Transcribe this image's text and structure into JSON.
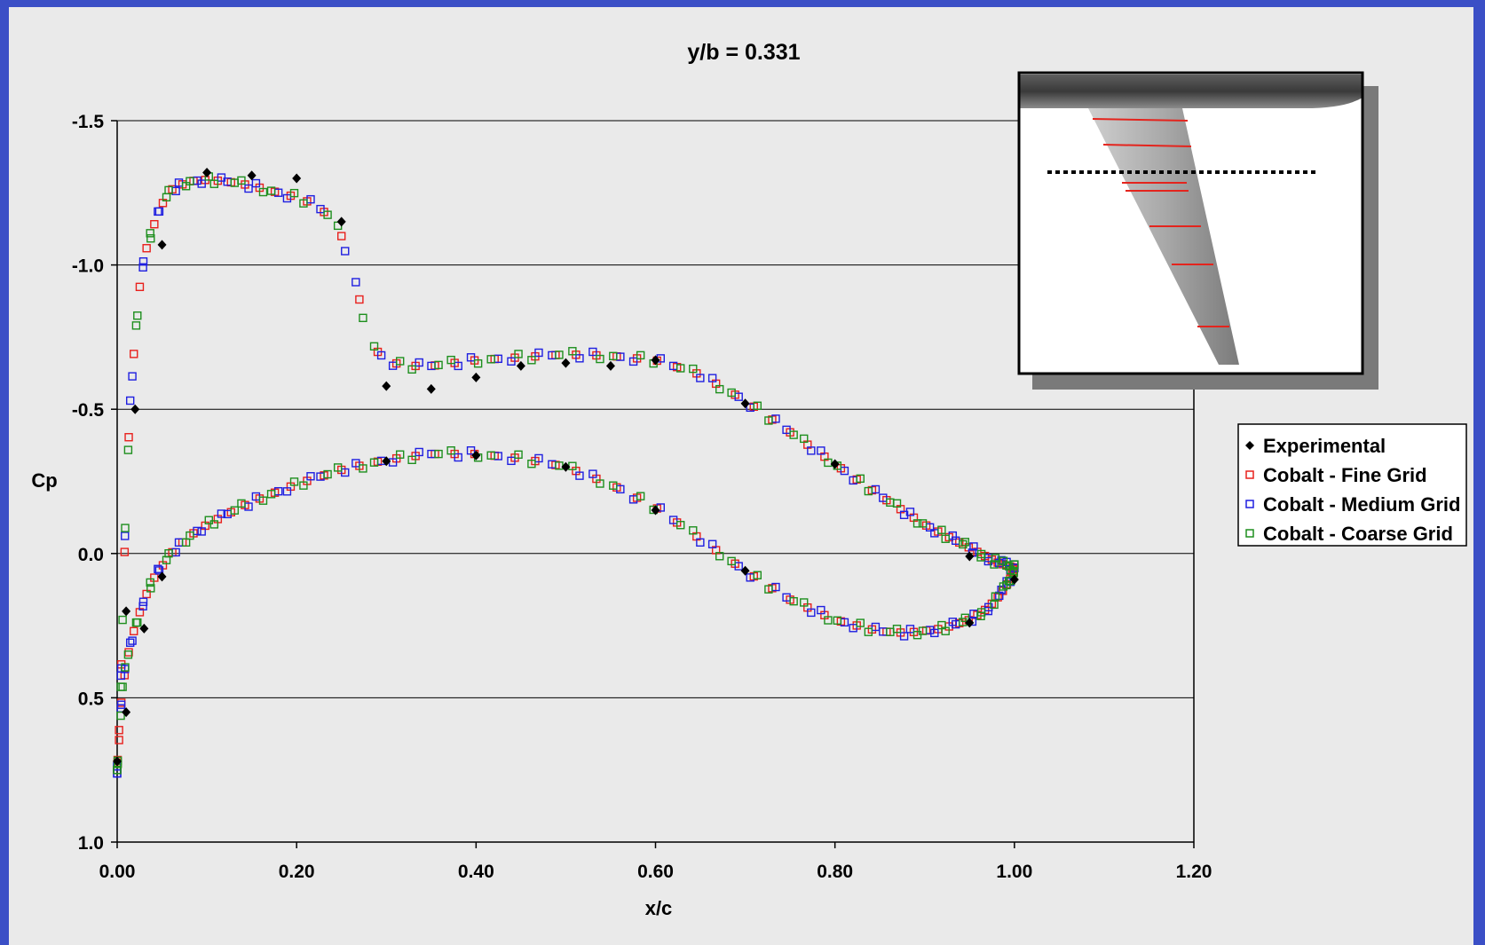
{
  "chart_data": {
    "type": "scatter",
    "title": "y/b = 0.331",
    "xlabel": "x/c",
    "ylabel": "Cp",
    "xlim": [
      0.0,
      1.2
    ],
    "ylim": [
      1.0,
      -1.5
    ],
    "y_inverted": true,
    "x_ticks": [
      "0.00",
      "0.20",
      "0.40",
      "0.60",
      "0.80",
      "1.00",
      "1.20"
    ],
    "x_tick_values": [
      0,
      0.2,
      0.4,
      0.6,
      0.8,
      1.0,
      1.2
    ],
    "y_ticks": [
      "-1.5",
      "-1.0",
      "-0.5",
      "0.0",
      "0.5",
      "1.0"
    ],
    "y_tick_values": [
      -1.5,
      -1.0,
      -0.5,
      0.0,
      0.5,
      1.0
    ],
    "grid": "horizontal",
    "legend_position": "right",
    "series": [
      {
        "name": "Experimental",
        "marker": "diamond",
        "color": "#000000",
        "upper": [
          [
            0.0,
            0.72
          ],
          [
            0.01,
            0.2
          ],
          [
            0.02,
            -0.5
          ],
          [
            0.05,
            -1.07
          ],
          [
            0.1,
            -1.32
          ],
          [
            0.15,
            -1.31
          ],
          [
            0.2,
            -1.3
          ],
          [
            0.25,
            -1.15
          ],
          [
            0.3,
            -0.58
          ],
          [
            0.35,
            -0.57
          ],
          [
            0.4,
            -0.61
          ],
          [
            0.45,
            -0.65
          ],
          [
            0.5,
            -0.66
          ],
          [
            0.55,
            -0.65
          ],
          [
            0.6,
            -0.67
          ],
          [
            0.7,
            -0.52
          ],
          [
            0.8,
            -0.31
          ],
          [
            0.95,
            0.01
          ],
          [
            1.0,
            0.09
          ]
        ],
        "lower": [
          [
            0.01,
            0.55
          ],
          [
            0.03,
            0.26
          ],
          [
            0.05,
            0.08
          ],
          [
            0.3,
            -0.32
          ],
          [
            0.4,
            -0.34
          ],
          [
            0.5,
            -0.3
          ],
          [
            0.6,
            -0.15
          ],
          [
            0.7,
            0.06
          ],
          [
            0.95,
            0.24
          ]
        ]
      },
      {
        "name": "Cobalt - Fine Grid",
        "marker": "square-open",
        "color": "#e8201c"
      },
      {
        "name": "Cobalt - Medium Grid",
        "marker": "square-open",
        "color": "#1f1fe0"
      },
      {
        "name": "Cobalt - Coarse Grid",
        "marker": "square-open",
        "color": "#1e8f1e"
      }
    ],
    "cfd_upper_curve": [
      [
        0.0,
        0.75
      ],
      [
        0.003,
        0.55
      ],
      [
        0.006,
        0.25
      ],
      [
        0.01,
        -0.2
      ],
      [
        0.015,
        -0.55
      ],
      [
        0.02,
        -0.75
      ],
      [
        0.025,
        -0.92
      ],
      [
        0.03,
        -1.03
      ],
      [
        0.04,
        -1.13
      ],
      [
        0.05,
        -1.21
      ],
      [
        0.06,
        -1.26
      ],
      [
        0.08,
        -1.29
      ],
      [
        0.1,
        -1.295
      ],
      [
        0.12,
        -1.29
      ],
      [
        0.15,
        -1.275
      ],
      [
        0.18,
        -1.25
      ],
      [
        0.2,
        -1.235
      ],
      [
        0.22,
        -1.21
      ],
      [
        0.24,
        -1.16
      ],
      [
        0.25,
        -1.1
      ],
      [
        0.26,
        -1.0
      ],
      [
        0.27,
        -0.88
      ],
      [
        0.28,
        -0.75
      ],
      [
        0.29,
        -0.7
      ],
      [
        0.3,
        -0.67
      ],
      [
        0.32,
        -0.65
      ],
      [
        0.35,
        -0.65
      ],
      [
        0.4,
        -0.67
      ],
      [
        0.45,
        -0.68
      ],
      [
        0.5,
        -0.69
      ],
      [
        0.55,
        -0.685
      ],
      [
        0.6,
        -0.67
      ],
      [
        0.65,
        -0.62
      ],
      [
        0.7,
        -0.53
      ],
      [
        0.75,
        -0.42
      ],
      [
        0.8,
        -0.31
      ],
      [
        0.85,
        -0.2
      ],
      [
        0.9,
        -0.1
      ],
      [
        0.95,
        -0.02
      ],
      [
        0.98,
        0.03
      ],
      [
        1.0,
        0.05
      ]
    ],
    "cfd_lower_curve": [
      [
        0.0,
        0.75
      ],
      [
        0.005,
        0.5
      ],
      [
        0.01,
        0.38
      ],
      [
        0.02,
        0.25
      ],
      [
        0.03,
        0.16
      ],
      [
        0.04,
        0.09
      ],
      [
        0.06,
        0.0
      ],
      [
        0.08,
        -0.06
      ],
      [
        0.1,
        -0.1
      ],
      [
        0.15,
        -0.18
      ],
      [
        0.2,
        -0.24
      ],
      [
        0.25,
        -0.29
      ],
      [
        0.3,
        -0.325
      ],
      [
        0.35,
        -0.345
      ],
      [
        0.4,
        -0.345
      ],
      [
        0.45,
        -0.33
      ],
      [
        0.5,
        -0.3
      ],
      [
        0.55,
        -0.24
      ],
      [
        0.6,
        -0.16
      ],
      [
        0.65,
        -0.05
      ],
      [
        0.7,
        0.06
      ],
      [
        0.75,
        0.16
      ],
      [
        0.8,
        0.23
      ],
      [
        0.85,
        0.27
      ],
      [
        0.88,
        0.275
      ],
      [
        0.92,
        0.26
      ],
      [
        0.95,
        0.23
      ],
      [
        0.97,
        0.19
      ],
      [
        0.985,
        0.14
      ],
      [
        0.995,
        0.09
      ],
      [
        1.0,
        0.05
      ]
    ]
  }
}
